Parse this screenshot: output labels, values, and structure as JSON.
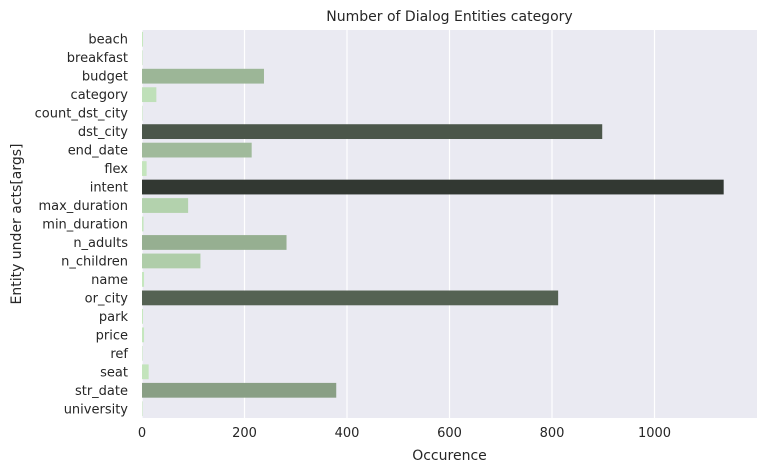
{
  "chart_data": {
    "type": "bar",
    "orientation": "horizontal",
    "title": "Number of Dialog Entities category",
    "xlabel": "Occurence",
    "ylabel": "Entity under acts[args]",
    "xlim": [
      0,
      1200
    ],
    "xticks": [
      0,
      200,
      400,
      600,
      800,
      1000
    ],
    "grid": true,
    "background": "#eaeaf2",
    "categories": [
      "beach",
      "breakfast",
      "budget",
      "category",
      "count_dst_city",
      "dst_city",
      "end_date",
      "flex",
      "intent",
      "max_duration",
      "min_duration",
      "n_adults",
      "n_children",
      "name",
      "or_city",
      "park",
      "price",
      "ref",
      "seat",
      "str_date",
      "university"
    ],
    "values": [
      2,
      1,
      238,
      28,
      1,
      898,
      214,
      9,
      1135,
      90,
      3,
      282,
      114,
      4,
      812,
      2,
      4,
      1,
      13,
      379,
      1
    ],
    "palette": {
      "low": "#c7e9c0",
      "high": "#323832"
    }
  }
}
